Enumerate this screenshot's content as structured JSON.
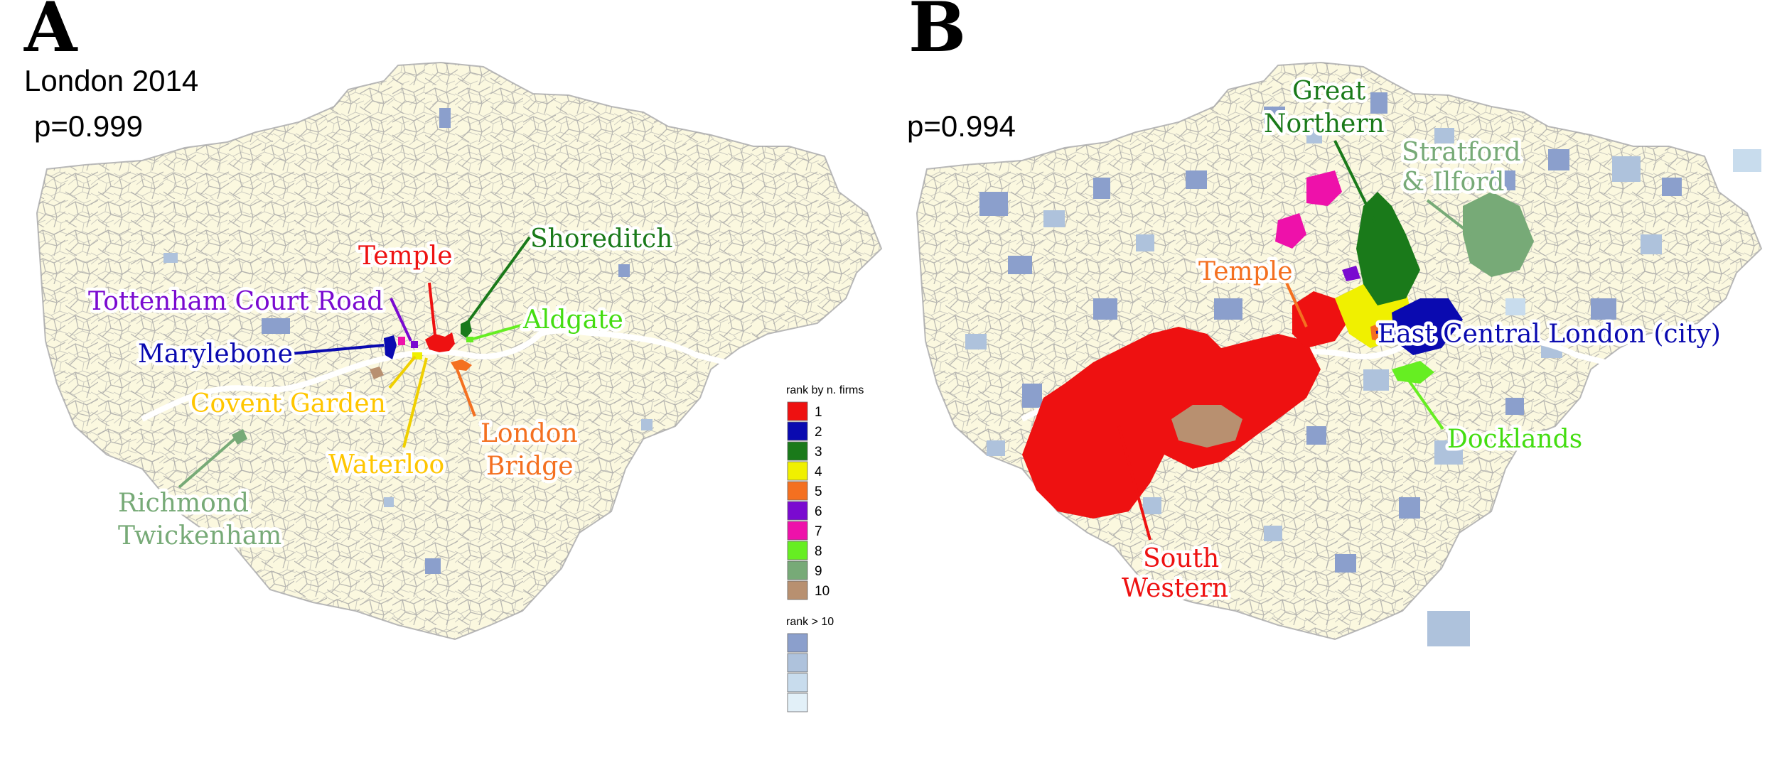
{
  "colors": {
    "rank": [
      "#ee1111",
      "#0a0ab0",
      "#1a7a1a",
      "#f0f000",
      "#f47020",
      "#7a0ad0",
      "#ee11aa",
      "#66ee22",
      "#77aa77",
      "#b89070"
    ],
    "rank_gt10": [
      "#8b9fcc",
      "#aec2dc",
      "#c8dced",
      "#e2f0f8"
    ],
    "map_fill": "#fbf8df",
    "ward_lines": "#a3a3a3"
  },
  "panel_a": {
    "letter": "A",
    "title": "London 2014",
    "p": "p=0.999",
    "clusters": [
      {
        "label": "Temple",
        "rank": 1
      },
      {
        "label": "Shoreditch",
        "rank": 3
      },
      {
        "label": "Tottenham Court Road",
        "rank": 6
      },
      {
        "label": "Aldgate",
        "rank": 8
      },
      {
        "label": "Marylebone",
        "rank": 2
      },
      {
        "label": "Covent Garden",
        "rank": 4
      },
      {
        "label": "London",
        "label2": "Bridge",
        "rank": 5
      },
      {
        "label": "Waterloo",
        "rank": 4
      },
      {
        "label": "Richmond",
        "label2": "Twickenham",
        "rank": 9
      }
    ]
  },
  "panel_b": {
    "letter": "B",
    "p": "p=0.994",
    "clusters": [
      {
        "label": "Great",
        "label2": "Northern",
        "rank": 3
      },
      {
        "label": "Stratford",
        "label2": "& Ilford",
        "rank": 9
      },
      {
        "label": "Temple",
        "rank": 5
      },
      {
        "label": "East Central London (city)",
        "rank": 2
      },
      {
        "label": "Docklands",
        "rank": 8
      },
      {
        "label": "South",
        "label2": "Western",
        "rank": 1
      }
    ]
  },
  "legend": {
    "title": "rank by n. firms",
    "ranks": [
      "1",
      "2",
      "3",
      "4",
      "5",
      "6",
      "7",
      "8",
      "9",
      "10"
    ],
    "title2": "rank > 10"
  }
}
